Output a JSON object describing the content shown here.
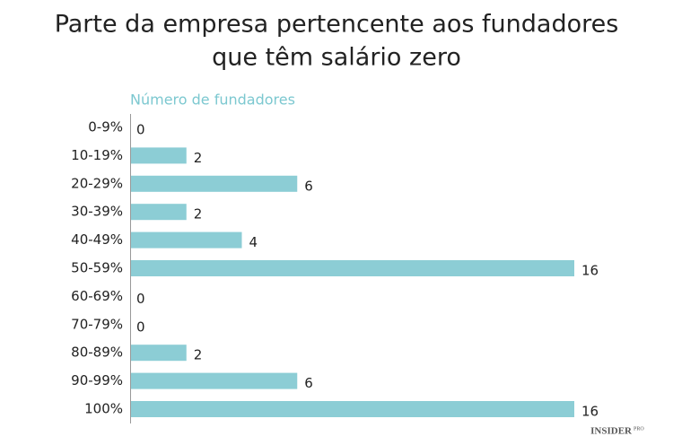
{
  "chart_data": {
    "type": "bar",
    "orientation": "horizontal",
    "title": [
      "Parte da empresa pertencente aos fundadores",
      "que têm salário zero"
    ],
    "subtitle": "Número de fundadores",
    "categories": [
      "0-9%",
      "10-19%",
      "20-29%",
      "30-39%",
      "40-49%",
      "50-59%",
      "60-69%",
      "70-79%",
      "80-89%",
      "90-99%",
      "100%"
    ],
    "values": [
      0,
      2,
      6,
      2,
      4,
      16,
      0,
      0,
      2,
      6,
      16
    ],
    "color": "#8ccdd5",
    "xlim": [
      0,
      16
    ],
    "logo": "INSIDER",
    "logo_suffix": "PRO"
  }
}
